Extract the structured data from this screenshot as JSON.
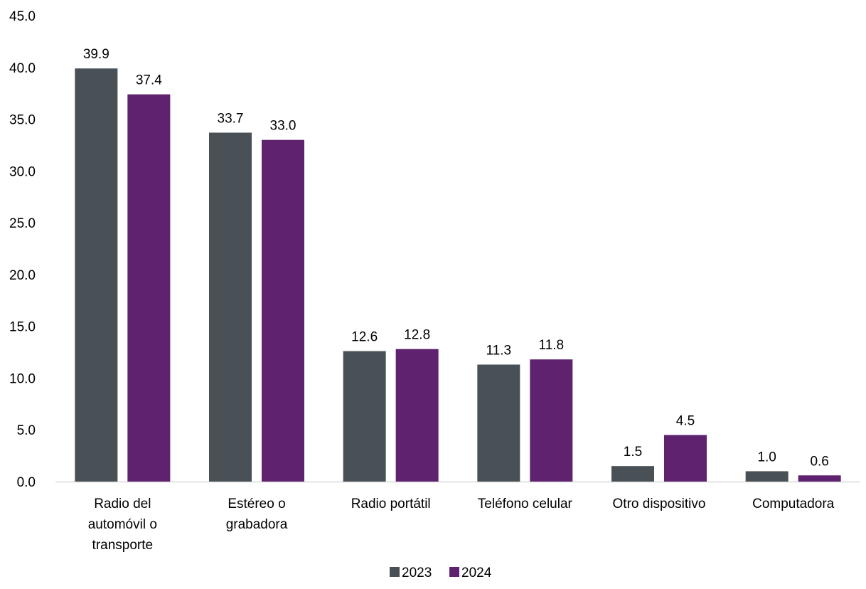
{
  "chart_data": {
    "type": "bar",
    "title": "",
    "xlabel": "",
    "ylabel": "",
    "ylim": [
      0,
      45
    ],
    "ytick_step": 5,
    "ytick_labels": [
      "0.0",
      "5.0",
      "10.0",
      "15.0",
      "20.0",
      "25.0",
      "30.0",
      "35.0",
      "40.0",
      "45.0"
    ],
    "grid": false,
    "legend_position": "bottom",
    "categories": [
      [
        "Radio del",
        "automóvil o",
        "transporte"
      ],
      [
        "Estéreo o",
        "grabadora"
      ],
      [
        "Radio portátil"
      ],
      [
        "Teléfono celular"
      ],
      [
        "Otro dispositivo"
      ],
      [
        "Computadora"
      ]
    ],
    "series": [
      {
        "name": "2023",
        "color": "#495156",
        "values": [
          39.9,
          33.7,
          12.6,
          11.3,
          1.5,
          1.0
        ],
        "labels": [
          "39.9",
          "33.7",
          "12.6",
          "11.3",
          "1.5",
          "1.0"
        ]
      },
      {
        "name": "2024",
        "color": "#5f226e",
        "values": [
          37.4,
          33.0,
          12.8,
          11.8,
          4.5,
          0.6
        ],
        "labels": [
          "37.4",
          "33.0",
          "12.8",
          "11.8",
          "4.5",
          "0.6"
        ]
      }
    ]
  }
}
